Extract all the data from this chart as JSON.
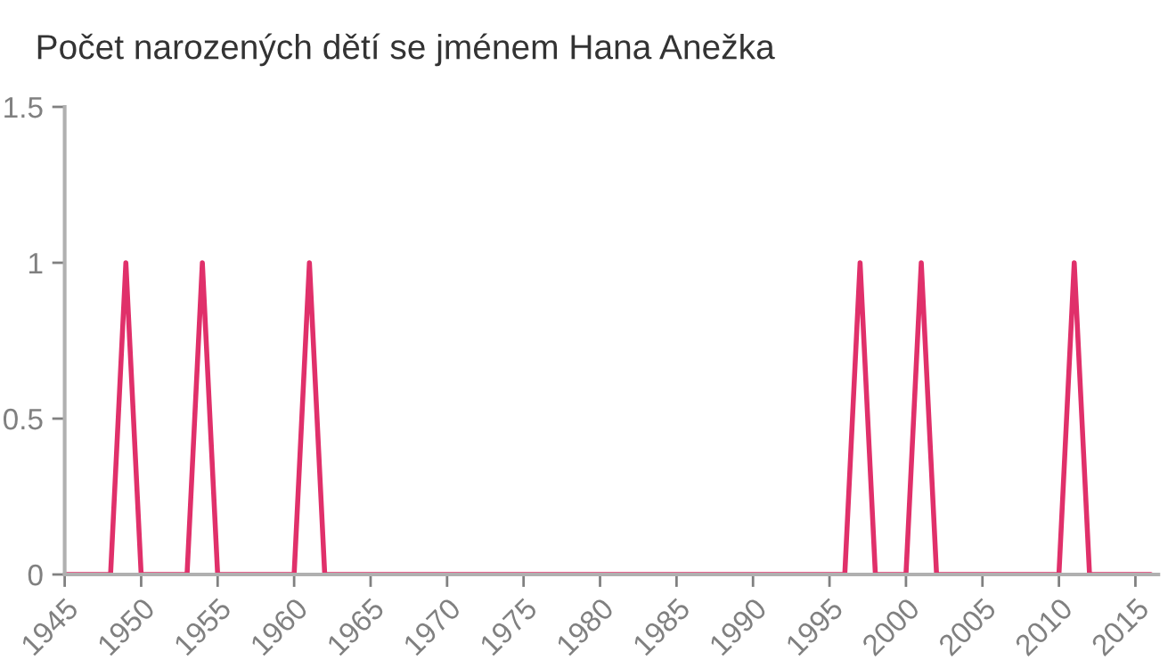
{
  "chart_data": {
    "type": "line",
    "title": "Počet narozených dětí se jménem Hana Anežka",
    "x": [
      1945,
      1946,
      1947,
      1948,
      1949,
      1950,
      1951,
      1952,
      1953,
      1954,
      1955,
      1956,
      1957,
      1958,
      1959,
      1960,
      1961,
      1962,
      1963,
      1964,
      1965,
      1966,
      1967,
      1968,
      1969,
      1970,
      1971,
      1972,
      1973,
      1974,
      1975,
      1976,
      1977,
      1978,
      1979,
      1980,
      1981,
      1982,
      1983,
      1984,
      1985,
      1986,
      1987,
      1988,
      1989,
      1990,
      1991,
      1992,
      1993,
      1994,
      1995,
      1996,
      1997,
      1998,
      1999,
      2000,
      2001,
      2002,
      2003,
      2004,
      2005,
      2006,
      2007,
      2008,
      2009,
      2010,
      2011,
      2012,
      2013,
      2014,
      2015,
      2016
    ],
    "series": [
      {
        "color": "#e0306a",
        "values": [
          0,
          0,
          0,
          0,
          1,
          0,
          0,
          0,
          0,
          1,
          0,
          0,
          0,
          0,
          0,
          0,
          1,
          0,
          0,
          0,
          0,
          0,
          0,
          0,
          0,
          0,
          0,
          0,
          0,
          0,
          0,
          0,
          0,
          0,
          0,
          0,
          0,
          0,
          0,
          0,
          0,
          0,
          0,
          0,
          0,
          0,
          0,
          0,
          0,
          0,
          0,
          0,
          1,
          0,
          0,
          0,
          1,
          0,
          0,
          0,
          0,
          0,
          0,
          0,
          0,
          0,
          1,
          0,
          0,
          0,
          0,
          0
        ]
      }
    ],
    "xlim": [
      1945,
      2016.5
    ],
    "xticks": [
      1945,
      1950,
      1955,
      1960,
      1965,
      1970,
      1975,
      1980,
      1985,
      1990,
      1995,
      2000,
      2005,
      2010,
      2015
    ],
    "ylim": [
      0,
      1.5
    ],
    "yticks": [
      0,
      0.5,
      1,
      1.5
    ],
    "grid": false,
    "legend": false,
    "marker": "none",
    "line_style": "solid"
  }
}
